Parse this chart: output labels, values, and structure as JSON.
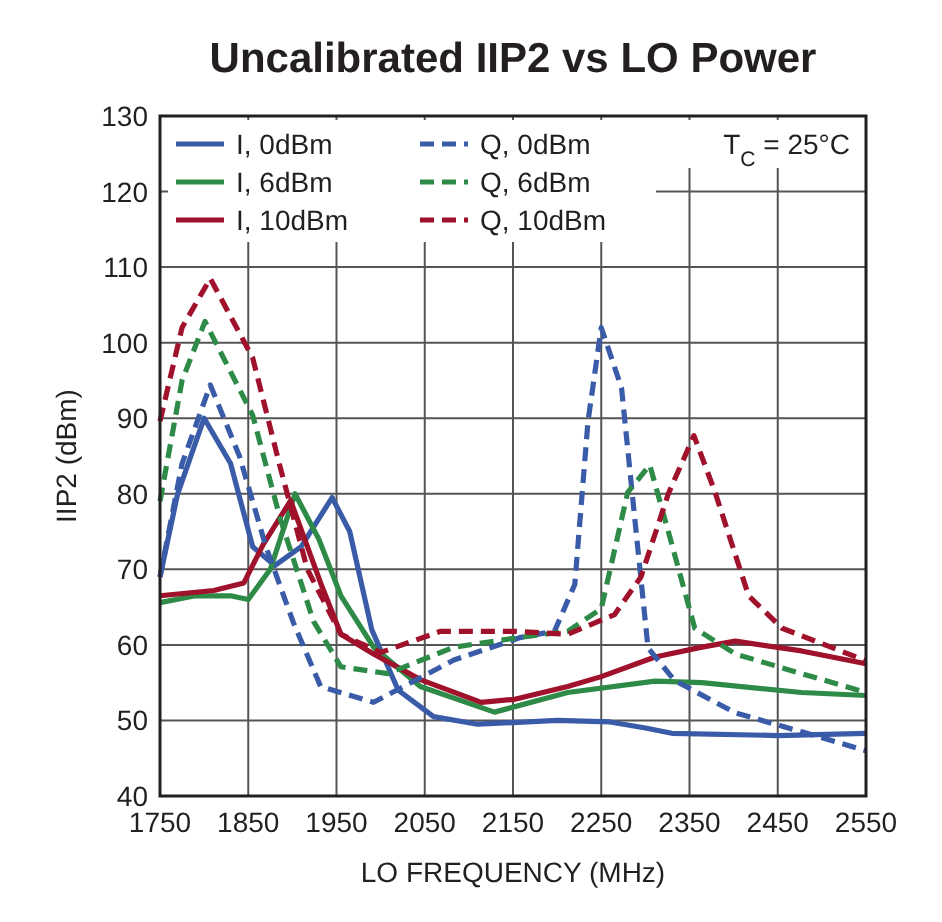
{
  "chart_data": {
    "type": "line",
    "title": "Uncalibrated IIP2 vs LO Power",
    "xlabel": "LO FREQUENCY (MHz)",
    "ylabel": "IIP2 (dBm)",
    "xlim": [
      1750,
      2550
    ],
    "xticks": [
      1750,
      1850,
      1950,
      2050,
      2150,
      2250,
      2350,
      2450,
      2550
    ],
    "ylim": [
      40,
      130
    ],
    "yticks": [
      40,
      50,
      60,
      70,
      80,
      90,
      100,
      110,
      120,
      130
    ],
    "grid": true,
    "legend": "top left",
    "annotations": [
      "T$_{C}$ = 25°C"
    ],
    "series": [
      {
        "name": "I, 0dBm",
        "color": "#3a5ba8",
        "line_style": "solid",
        "x": [
          1750,
          1770,
          1800,
          1830,
          1855,
          1880,
          1910,
          1945,
          1965,
          1990,
          2020,
          2060,
          2110,
          2200,
          2260,
          2300,
          2330,
          2450,
          2550
        ],
        "values": [
          69,
          80,
          90,
          84,
          73,
          70.5,
          73,
          79.5,
          75,
          62,
          54,
          50.5,
          49.5,
          50,
          49.8,
          49,
          48.3,
          48,
          48.3
        ]
      },
      {
        "name": "I, 6dBm",
        "color": "#2e8b47",
        "line_style": "solid",
        "x": [
          1750,
          1790,
          1830,
          1850,
          1875,
          1903,
          1930,
          1955,
          1992,
          2045,
          2129,
          2212,
          2311,
          2364,
          2477,
          2550
        ],
        "values": [
          65.6,
          66.5,
          66.5,
          66,
          70,
          80,
          74,
          66.5,
          59.7,
          54.5,
          51.1,
          53.7,
          55.2,
          55,
          53.7,
          53.3
        ]
      },
      {
        "name": "I, 10dBm",
        "color": "#a0112b",
        "line_style": "solid",
        "x": [
          1750,
          1811,
          1845,
          1867,
          1898,
          1932,
          1955,
          1992,
          2045,
          2114,
          2152,
          2212,
          2250,
          2311,
          2364,
          2402,
          2477,
          2550
        ],
        "values": [
          66.5,
          67.2,
          68.2,
          73.3,
          79.1,
          68.2,
          61.4,
          58.8,
          55.4,
          52.4,
          52.8,
          54.5,
          55.8,
          58.4,
          59.7,
          60.5,
          59.2,
          57.5
        ]
      },
      {
        "name": "Q, 0dBm",
        "color": "#3a5ba8",
        "line_style": "dashed",
        "x": [
          1750,
          1775,
          1807,
          1840,
          1870,
          1901,
          1932,
          1992,
          2083,
          2159,
          2197,
          2220,
          2235,
          2250,
          2273,
          2288,
          2303,
          2333,
          2402,
          2477,
          2550
        ],
        "values": [
          69,
          84,
          94.4,
          85,
          73,
          63,
          54.5,
          52.4,
          58,
          61,
          61.8,
          68,
          89.6,
          102,
          94,
          76.7,
          59.6,
          55.3,
          51,
          48.5,
          46
        ]
      },
      {
        "name": "Q, 6dBm",
        "color": "#2e8b47",
        "line_style": "dashed",
        "x": [
          1750,
          1775,
          1801,
          1855,
          1886,
          1924,
          1955,
          2008,
          2083,
          2159,
          2212,
          2250,
          2280,
          2305,
          2326,
          2356,
          2402,
          2477,
          2550
        ],
        "values": [
          79,
          95,
          102.8,
          90.4,
          76.8,
          63.1,
          57.1,
          56.2,
          59.7,
          61,
          61.8,
          64.8,
          80.2,
          83.8,
          75,
          62.2,
          58.8,
          56.2,
          53.7
        ]
      },
      {
        "name": "Q, 10dBm",
        "color": "#a0112b",
        "line_style": "dashed",
        "x": [
          1750,
          1775,
          1807,
          1855,
          1886,
          1917,
          1955,
          2000,
          2068,
          2152,
          2212,
          2265,
          2295,
          2326,
          2355,
          2379,
          2417,
          2455,
          2550
        ],
        "values": [
          89.6,
          102,
          108.5,
          98,
          83.6,
          70,
          61.4,
          59,
          61.8,
          61.8,
          61.4,
          64,
          69,
          80,
          87.7,
          80.2,
          66.5,
          62.2,
          57.9
        ]
      }
    ]
  }
}
